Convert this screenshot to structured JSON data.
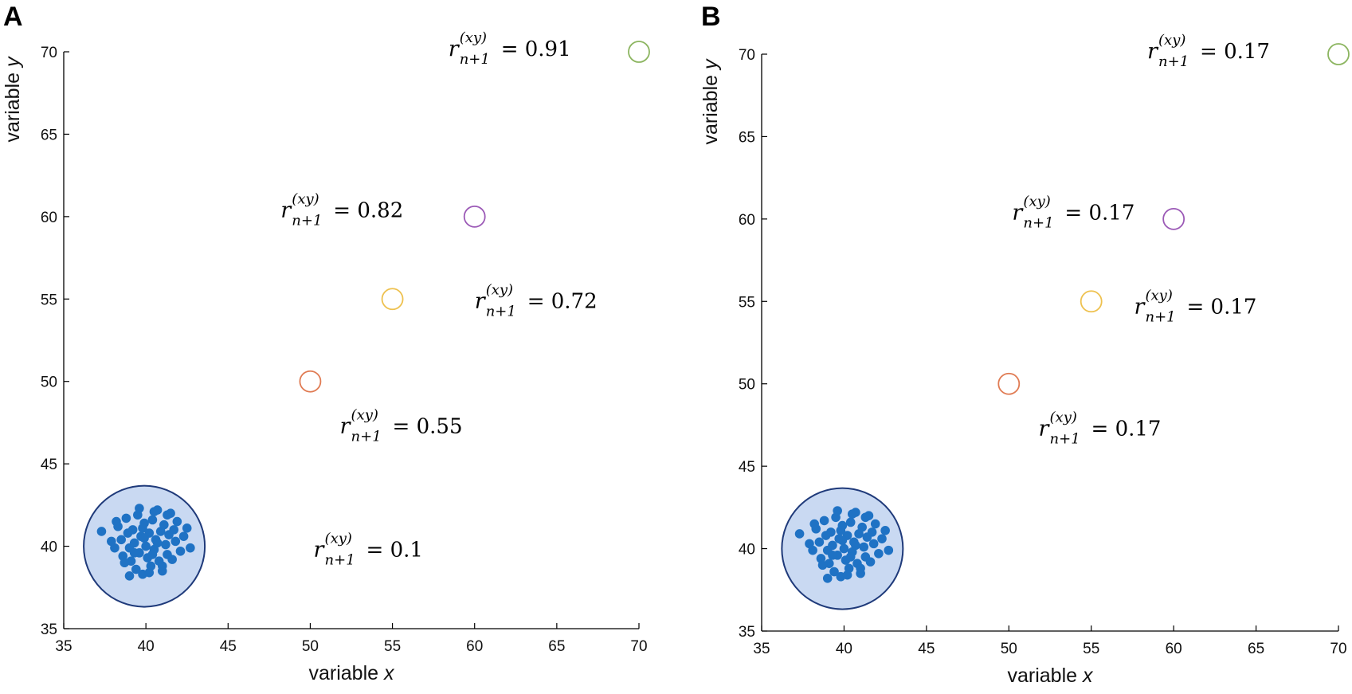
{
  "chart_data": [
    {
      "type": "scatter",
      "panel_label": "A",
      "xlabel": "variable x",
      "ylabel": "variable y",
      "xlim": [
        35,
        70
      ],
      "ylim": [
        35,
        70
      ],
      "xticks": [
        "35",
        "40",
        "45",
        "50",
        "55",
        "60",
        "65",
        "70"
      ],
      "yticks": [
        "35",
        "40",
        "45",
        "50",
        "55",
        "60",
        "65",
        "70"
      ],
      "cluster": {
        "center": [
          40,
          40
        ],
        "fill_color": "#c9d9f2",
        "edge_color": "#1f3a7a",
        "point_color": "#1f72c4",
        "points": [
          [
            37.3,
            40.9
          ],
          [
            37.9,
            40.3
          ],
          [
            38.1,
            39.9
          ],
          [
            38.3,
            41.2
          ],
          [
            38.5,
            40.4
          ],
          [
            38.6,
            39.4
          ],
          [
            38.8,
            41.7
          ],
          [
            38.9,
            40.8
          ],
          [
            39.0,
            39.9
          ],
          [
            39.1,
            39.1
          ],
          [
            39.2,
            41.0
          ],
          [
            39.3,
            40.2
          ],
          [
            39.4,
            38.6
          ],
          [
            39.5,
            41.9
          ],
          [
            39.6,
            39.6
          ],
          [
            39.7,
            40.6
          ],
          [
            39.8,
            38.3
          ],
          [
            39.9,
            41.4
          ],
          [
            40.0,
            40.0
          ],
          [
            40.1,
            39.3
          ],
          [
            40.2,
            40.8
          ],
          [
            40.3,
            38.8
          ],
          [
            40.4,
            41.6
          ],
          [
            40.5,
            39.8
          ],
          [
            40.6,
            40.4
          ],
          [
            40.7,
            42.2
          ],
          [
            40.8,
            39.1
          ],
          [
            40.9,
            40.9
          ],
          [
            41.0,
            38.5
          ],
          [
            41.1,
            41.3
          ],
          [
            41.2,
            40.1
          ],
          [
            41.3,
            39.5
          ],
          [
            41.4,
            40.7
          ],
          [
            41.5,
            42.0
          ],
          [
            41.6,
            39.2
          ],
          [
            41.7,
            41.0
          ],
          [
            41.8,
            40.3
          ],
          [
            41.9,
            41.5
          ],
          [
            42.1,
            39.7
          ],
          [
            42.3,
            40.6
          ],
          [
            42.5,
            41.1
          ],
          [
            42.7,
            39.9
          ],
          [
            39.0,
            38.2
          ],
          [
            40.5,
            42.1
          ],
          [
            38.2,
            41.5
          ],
          [
            41.0,
            38.8
          ],
          [
            39.6,
            42.3
          ],
          [
            40.2,
            38.4
          ],
          [
            38.7,
            39.0
          ],
          [
            41.3,
            41.9
          ],
          [
            39.9,
            40.5
          ],
          [
            40.7,
            40.2
          ],
          [
            39.3,
            39.6
          ],
          [
            40.4,
            39.5
          ],
          [
            39.8,
            41.1
          ]
        ]
      },
      "points": [
        {
          "x": 40,
          "y": 40,
          "r_value": "0.1"
        },
        {
          "x": 50,
          "y": 50,
          "color": "#e07b53",
          "r_value": "0.55"
        },
        {
          "x": 55,
          "y": 55,
          "color": "#eec14f",
          "r_value": "0.72"
        },
        {
          "x": 60,
          "y": 60,
          "color": "#9b59b6",
          "r_value": "0.82"
        },
        {
          "x": 70,
          "y": 70,
          "color": "#8cb560",
          "r_value": "0.91"
        }
      ],
      "annotation_symbol": {
        "base": "r",
        "superscript": "(xy)",
        "subscript": "n+1",
        "equals": "="
      }
    },
    {
      "type": "scatter",
      "panel_label": "B",
      "xlabel": "variable x",
      "ylabel": "variable y",
      "xlim": [
        35,
        70
      ],
      "ylim": [
        35,
        70
      ],
      "xticks": [
        "35",
        "40",
        "45",
        "50",
        "55",
        "60",
        "65",
        "70"
      ],
      "yticks": [
        "35",
        "40",
        "45",
        "50",
        "55",
        "60",
        "65",
        "70"
      ],
      "cluster": {
        "center": [
          40,
          40
        ],
        "fill_color": "#c9d9f2",
        "edge_color": "#1f3a7a",
        "point_color": "#1f72c4",
        "points": [
          [
            37.3,
            40.9
          ],
          [
            37.9,
            40.3
          ],
          [
            38.1,
            39.9
          ],
          [
            38.3,
            41.2
          ],
          [
            38.5,
            40.4
          ],
          [
            38.6,
            39.4
          ],
          [
            38.8,
            41.7
          ],
          [
            38.9,
            40.8
          ],
          [
            39.0,
            39.9
          ],
          [
            39.1,
            39.1
          ],
          [
            39.2,
            41.0
          ],
          [
            39.3,
            40.2
          ],
          [
            39.4,
            38.6
          ],
          [
            39.5,
            41.9
          ],
          [
            39.6,
            39.6
          ],
          [
            39.7,
            40.6
          ],
          [
            39.8,
            38.3
          ],
          [
            39.9,
            41.4
          ],
          [
            40.0,
            40.0
          ],
          [
            40.1,
            39.3
          ],
          [
            40.2,
            40.8
          ],
          [
            40.3,
            38.8
          ],
          [
            40.4,
            41.6
          ],
          [
            40.5,
            39.8
          ],
          [
            40.6,
            40.4
          ],
          [
            40.7,
            42.2
          ],
          [
            40.8,
            39.1
          ],
          [
            40.9,
            40.9
          ],
          [
            41.0,
            38.5
          ],
          [
            41.1,
            41.3
          ],
          [
            41.2,
            40.1
          ],
          [
            41.3,
            39.5
          ],
          [
            41.4,
            40.7
          ],
          [
            41.5,
            42.0
          ],
          [
            41.6,
            39.2
          ],
          [
            41.7,
            41.0
          ],
          [
            41.8,
            40.3
          ],
          [
            41.9,
            41.5
          ],
          [
            42.1,
            39.7
          ],
          [
            42.3,
            40.6
          ],
          [
            42.5,
            41.1
          ],
          [
            42.7,
            39.9
          ],
          [
            39.0,
            38.2
          ],
          [
            40.5,
            42.1
          ],
          [
            38.2,
            41.5
          ],
          [
            41.0,
            38.8
          ],
          [
            39.6,
            42.3
          ],
          [
            40.2,
            38.4
          ],
          [
            38.7,
            39.0
          ],
          [
            41.3,
            41.9
          ],
          [
            39.9,
            40.5
          ],
          [
            40.7,
            40.2
          ],
          [
            39.3,
            39.6
          ],
          [
            40.4,
            39.5
          ],
          [
            39.8,
            41.1
          ]
        ]
      },
      "points": [
        {
          "x": 50,
          "y": 50,
          "color": "#e07b53",
          "r_value": "0.17"
        },
        {
          "x": 55,
          "y": 55,
          "color": "#eec14f",
          "r_value": "0.17"
        },
        {
          "x": 60,
          "y": 60,
          "color": "#9b59b6",
          "r_value": "0.17"
        },
        {
          "x": 70,
          "y": 70,
          "color": "#8cb560",
          "r_value": "0.17"
        }
      ],
      "annotation_symbol": {
        "base": "r",
        "superscript": "(xy)",
        "subscript": "n+1",
        "equals": "="
      }
    }
  ]
}
